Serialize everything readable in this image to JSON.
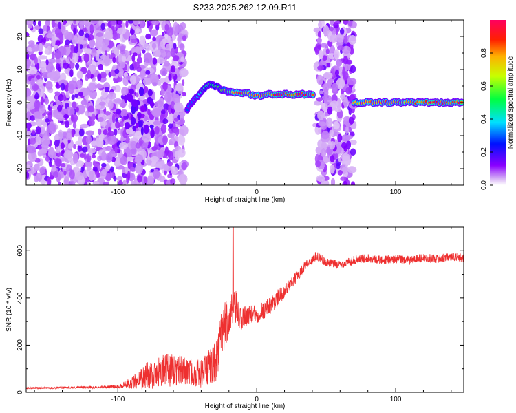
{
  "title": "S233.2025.262.12.09.R11",
  "chart_data": [
    {
      "type": "heatmap",
      "name": "spectrogram",
      "xlabel": "Height of straight line (km)",
      "ylabel": "Frequency (Hz)",
      "xlim": [
        -166,
        149
      ],
      "ylim": [
        -25,
        25
      ],
      "xticks": [
        -100,
        0,
        100
      ],
      "xtick_labels": [
        "-100",
        "0",
        "100"
      ],
      "yticks": [
        -20,
        -10,
        0,
        10,
        20
      ],
      "ytick_labels": [
        "-20",
        "-10",
        "0",
        "10",
        "20"
      ],
      "noise_regions": [
        {
          "x_start": -166,
          "x_end": -52,
          "description_level": 0.15
        },
        {
          "x_start": 43,
          "x_end": 70,
          "description_level": 0.15
        }
      ],
      "signal_track": [
        {
          "x": -50,
          "y": -2.0,
          "amp": 0.3
        },
        {
          "x": -45,
          "y": 1.0,
          "amp": 0.35
        },
        {
          "x": -40,
          "y": 3.0,
          "amp": 0.45
        },
        {
          "x": -35,
          "y": 5.5,
          "amp": 0.5
        },
        {
          "x": -30,
          "y": 5.0,
          "amp": 0.55
        },
        {
          "x": -25,
          "y": 4.0,
          "amp": 0.6
        },
        {
          "x": -20,
          "y": 3.0,
          "amp": 0.75
        },
        {
          "x": -10,
          "y": 3.0,
          "amp": 0.9
        },
        {
          "x": 0,
          "y": 2.0,
          "amp": 0.85
        },
        {
          "x": 10,
          "y": 2.5,
          "amp": 0.9
        },
        {
          "x": 20,
          "y": 2.5,
          "amp": 0.95
        },
        {
          "x": 30,
          "y": 2.5,
          "amp": 0.95
        },
        {
          "x": 42,
          "y": 2.5,
          "amp": 0.9
        }
      ],
      "signal_track_2": [
        {
          "x": 70,
          "y": 0.0,
          "amp": 0.8
        },
        {
          "x": 90,
          "y": 0.0,
          "amp": 0.85
        },
        {
          "x": 110,
          "y": 0.0,
          "amp": 0.88
        },
        {
          "x": 130,
          "y": 0.0,
          "amp": 0.92
        },
        {
          "x": 149,
          "y": 0.0,
          "amp": 0.95
        }
      ],
      "colorbar": {
        "label": "Normalized spectral amplitude",
        "ticks": [
          0.0,
          0.2,
          0.4,
          0.6,
          0.8
        ],
        "tick_labels": [
          "0.0",
          "0.2",
          "0.4",
          "0.6",
          "0.8"
        ],
        "range": [
          0,
          1
        ]
      }
    },
    {
      "type": "line",
      "name": "snr",
      "xlabel": "Height of straight line (km)",
      "ylabel": "SNR (10 * v/v)",
      "xlim": [
        -166,
        149
      ],
      "ylim": [
        0,
        700
      ],
      "xticks": [
        -100,
        0,
        100
      ],
      "xtick_labels": [
        "-100",
        "0",
        "100"
      ],
      "yticks": [
        0,
        200,
        400,
        600
      ],
      "ytick_labels": [
        "0",
        "200",
        "400",
        "600"
      ],
      "color": "#ee3030",
      "x": [
        -166,
        -140,
        -110,
        -100,
        -90,
        -80,
        -70,
        -60,
        -50,
        -40,
        -30,
        -25,
        -20,
        -15,
        -12,
        -10,
        -5,
        0,
        5,
        10,
        15,
        20,
        25,
        30,
        35,
        40,
        43,
        50,
        60,
        70,
        80,
        90,
        100,
        110,
        120,
        130,
        140,
        149
      ],
      "y": [
        18,
        20,
        22,
        25,
        40,
        70,
        90,
        95,
        90,
        80,
        120,
        250,
        320,
        360,
        300,
        320,
        330,
        330,
        350,
        370,
        400,
        430,
        460,
        500,
        540,
        560,
        580,
        550,
        540,
        560,
        570,
        560,
        565,
        560,
        570,
        565,
        575,
        570
      ],
      "amplitude_noise": [
        4,
        4,
        5,
        8,
        25,
        60,
        70,
        70,
        60,
        60,
        90,
        110,
        90,
        70,
        60,
        50,
        40,
        40,
        40,
        40,
        35,
        30,
        25,
        25,
        20,
        20,
        20,
        18,
        18,
        18,
        18,
        18,
        18,
        18,
        18,
        18,
        18,
        18
      ],
      "spike": {
        "x": -17,
        "y": 700
      }
    }
  ]
}
